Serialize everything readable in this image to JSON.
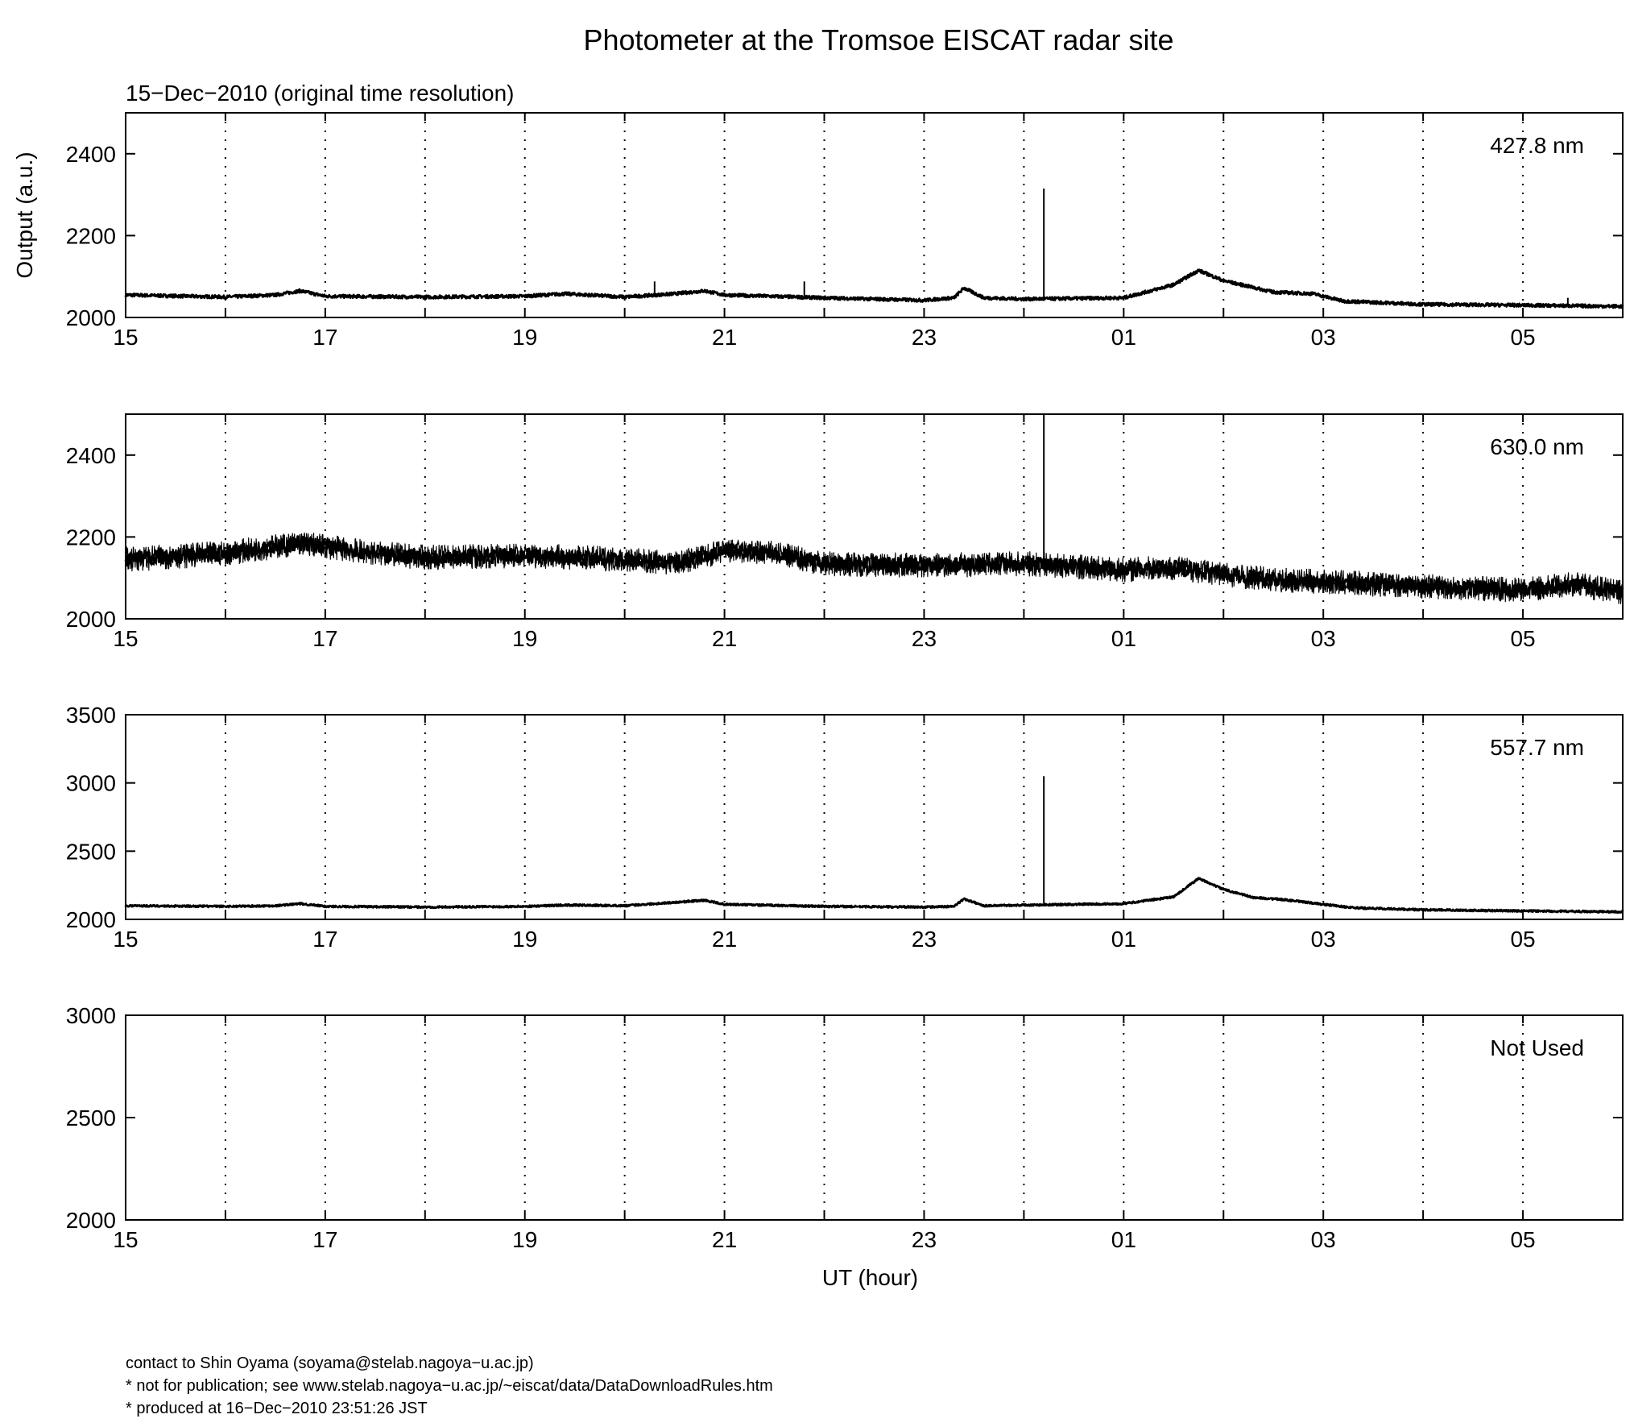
{
  "title": "Photometer at the Tromsoe EISCAT radar site",
  "subtitle": "15−Dec−2010 (original time resolution)",
  "footer": [
    "contact to Shin Oyama (soyama@stelab.nagoya−u.ac.jp)",
    "* not for publication; see www.stelab.nagoya−u.ac.jp/~eiscat/data/DataDownloadRules.htm",
    "* produced at 16−Dec−2010 23:51:26 JST"
  ],
  "chart_data": [
    {
      "type": "line",
      "panel_label": "427.8 nm",
      "ylabel": "Output (a.u.)",
      "xlabel": "",
      "xlim": [
        15,
        30
      ],
      "ylim": [
        2000,
        2500
      ],
      "yticks": [
        2000,
        2200,
        2400
      ],
      "xtick_labels": [
        "15",
        "17",
        "19",
        "21",
        "23",
        "01",
        "03",
        "05"
      ],
      "grid_hours": [
        16,
        17,
        18,
        19,
        20,
        21,
        22,
        23,
        24,
        25,
        26,
        27,
        28,
        29
      ],
      "noise": 8,
      "series": [
        {
          "x": [
            15,
            16,
            16.5,
            16.75,
            17,
            18,
            19,
            19.4,
            20,
            20.5,
            20.8,
            21,
            22,
            23,
            23.3,
            23.4,
            23.6,
            24,
            25,
            25.5,
            25.75,
            26,
            26.5,
            26.9,
            27.2,
            28,
            29,
            30
          ],
          "y": [
            2055,
            2050,
            2055,
            2065,
            2052,
            2050,
            2052,
            2058,
            2050,
            2058,
            2065,
            2055,
            2048,
            2042,
            2048,
            2072,
            2048,
            2045,
            2048,
            2080,
            2115,
            2090,
            2062,
            2058,
            2040,
            2032,
            2030,
            2027
          ]
        }
      ],
      "spikes": [
        {
          "x": 24.2,
          "y": 2315
        },
        {
          "x": 20.3,
          "y": 2088
        },
        {
          "x": 21.8,
          "y": 2088
        },
        {
          "x": 29.45,
          "y": 2048
        }
      ]
    },
    {
      "type": "line",
      "panel_label": "630.0 nm",
      "ylabel": "",
      "xlabel": "",
      "xlim": [
        15,
        30
      ],
      "ylim": [
        2000,
        2500
      ],
      "yticks": [
        2000,
        2200,
        2400
      ],
      "xtick_labels": [
        "15",
        "17",
        "19",
        "21",
        "23",
        "01",
        "03",
        "05"
      ],
      "grid_hours": [
        16,
        17,
        18,
        19,
        20,
        21,
        22,
        23,
        24,
        25,
        26,
        27,
        28,
        29
      ],
      "noise": 60,
      "series": [
        {
          "x": [
            15,
            16,
            16.75,
            17.5,
            18,
            19,
            20,
            20.5,
            21,
            21.5,
            22,
            23,
            24,
            25,
            25.5,
            26,
            26.5,
            27,
            28,
            28.5,
            29,
            29.5,
            30
          ],
          "y": [
            2145,
            2160,
            2185,
            2160,
            2150,
            2155,
            2145,
            2135,
            2165,
            2160,
            2135,
            2130,
            2135,
            2120,
            2125,
            2110,
            2095,
            2090,
            2080,
            2075,
            2070,
            2085,
            2065
          ]
        }
      ],
      "spikes": [
        {
          "x": 24.2,
          "y": 2500
        }
      ]
    },
    {
      "type": "line",
      "panel_label": "557.7 nm",
      "ylabel": "",
      "xlabel": "",
      "xlim": [
        15,
        30
      ],
      "ylim": [
        2000,
        3500
      ],
      "yticks": [
        2000,
        2500,
        3000,
        3500
      ],
      "xtick_labels": [
        "15",
        "17",
        "19",
        "21",
        "23",
        "01",
        "03",
        "05"
      ],
      "grid_hours": [
        16,
        17,
        18,
        19,
        20,
        21,
        22,
        23,
        24,
        25,
        26,
        27,
        28,
        29
      ],
      "noise": 14,
      "series": [
        {
          "x": [
            15,
            16,
            16.5,
            16.75,
            17,
            18,
            19,
            19.4,
            20,
            20.3,
            20.5,
            20.8,
            21,
            22,
            23,
            23.3,
            23.4,
            23.6,
            24,
            25,
            25.5,
            25.75,
            26,
            26.3,
            26.6,
            27,
            27.3,
            28,
            29,
            30
          ],
          "y": [
            2100,
            2095,
            2100,
            2115,
            2095,
            2090,
            2095,
            2105,
            2100,
            2115,
            2125,
            2140,
            2110,
            2095,
            2090,
            2095,
            2150,
            2100,
            2105,
            2115,
            2165,
            2300,
            2220,
            2160,
            2145,
            2110,
            2085,
            2070,
            2062,
            2055
          ]
        }
      ],
      "spikes": [
        {
          "x": 24.2,
          "y": 3050
        }
      ]
    },
    {
      "type": "line",
      "panel_label": "Not Used",
      "ylabel": "",
      "xlabel": "UT (hour)",
      "xlim": [
        15,
        30
      ],
      "ylim": [
        2000,
        3000
      ],
      "yticks": [
        2000,
        2500,
        3000
      ],
      "xtick_labels": [
        "15",
        "17",
        "19",
        "21",
        "23",
        "01",
        "03",
        "05"
      ],
      "grid_hours": [
        16,
        17,
        18,
        19,
        20,
        21,
        22,
        23,
        24,
        25,
        26,
        27,
        28,
        29
      ],
      "noise": 0,
      "series": [],
      "spikes": []
    }
  ]
}
